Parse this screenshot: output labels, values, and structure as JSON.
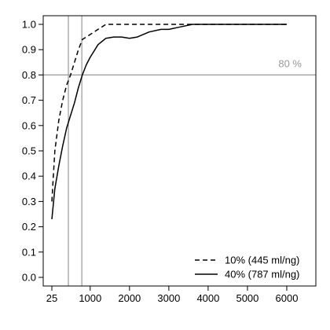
{
  "chart_data": {
    "type": "line",
    "xlim": [
      25,
      6500
    ],
    "ylim": [
      0.0,
      1.0
    ],
    "x_ticks": [
      25,
      1000,
      2000,
      3000,
      4000,
      5000,
      6000
    ],
    "x_tick_labels": [
      "25",
      "1000",
      "2000",
      "3000",
      "4000",
      "5000",
      "6000"
    ],
    "y_ticks": [
      0.0,
      0.1,
      0.2,
      0.3,
      0.4,
      0.5,
      0.6,
      0.7,
      0.8,
      0.9,
      1.0
    ],
    "y_tick_labels": [
      "0.0",
      "0.1",
      "0.2",
      "0.3",
      "0.4",
      "0.5",
      "0.6",
      "0.7",
      "0.8",
      "0.9",
      "1.0"
    ],
    "grid": false,
    "legend_position": "bottom-right",
    "reference_lines": {
      "horizontal": {
        "y": 0.8,
        "label": "80 %",
        "color": "#999999"
      },
      "vertical": [
        {
          "x": 445,
          "color": "#999999"
        },
        {
          "x": 787,
          "color": "#999999"
        }
      ]
    },
    "series": [
      {
        "name": "10% (445 ml/ng)",
        "style": "dashed",
        "color": "#000000",
        "x": [
          25,
          100,
          200,
          300,
          400,
          500,
          600,
          700,
          800,
          1000,
          1200,
          1400,
          1600,
          2000,
          3000,
          3500,
          6000
        ],
        "y": [
          0.3,
          0.5,
          0.62,
          0.7,
          0.76,
          0.8,
          0.85,
          0.9,
          0.94,
          0.96,
          0.98,
          1.0,
          1.0,
          1.0,
          1.0,
          1.0,
          1.0
        ]
      },
      {
        "name": "40% (787 ml/ng)",
        "style": "solid",
        "color": "#000000",
        "x": [
          25,
          100,
          200,
          300,
          400,
          500,
          600,
          700,
          800,
          900,
          1000,
          1200,
          1400,
          1600,
          1800,
          2000,
          2200,
          2500,
          2800,
          3000,
          3300,
          3600,
          4000,
          5000,
          6000
        ],
        "y": [
          0.23,
          0.35,
          0.44,
          0.52,
          0.59,
          0.64,
          0.69,
          0.75,
          0.8,
          0.84,
          0.87,
          0.92,
          0.945,
          0.95,
          0.95,
          0.945,
          0.95,
          0.97,
          0.98,
          0.98,
          0.99,
          1.0,
          1.0,
          1.0,
          1.0
        ]
      }
    ]
  }
}
